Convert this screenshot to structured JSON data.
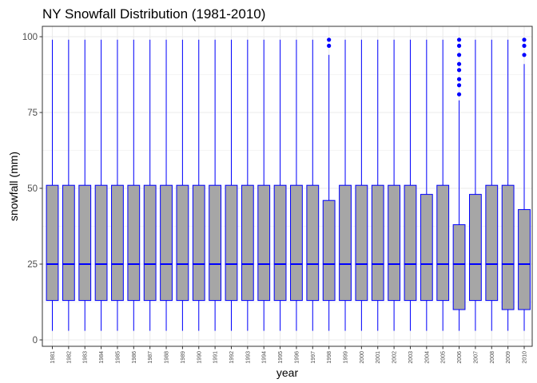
{
  "chart_data": {
    "type": "boxplot",
    "title": "NY Snowfall Distribution (1981-2010)",
    "xlabel": "year",
    "ylabel": "snowfall (mm)",
    "ylim": [
      0,
      100
    ],
    "yticks": [
      0,
      25,
      50,
      75,
      100
    ],
    "grid": true,
    "colors": {
      "box_fill": "#a6a6a6",
      "box_line": "#0000ff",
      "outlier": "#0000ff",
      "grid": "#ebebeb",
      "panel_border": "#333333"
    },
    "categories": [
      "1981",
      "1982",
      "1983",
      "1984",
      "1985",
      "1986",
      "1987",
      "1988",
      "1989",
      "1990",
      "1991",
      "1992",
      "1993",
      "1994",
      "1995",
      "1996",
      "1997",
      "1998",
      "1999",
      "2000",
      "2001",
      "2002",
      "2003",
      "2004",
      "2005",
      "2006",
      "2007",
      "2008",
      "2009",
      "2010"
    ],
    "boxes": [
      {
        "year": "1981",
        "whisker_low": 3,
        "q1": 13,
        "median": 25,
        "q3": 51,
        "whisker_high": 99,
        "outliers": []
      },
      {
        "year": "1982",
        "whisker_low": 3,
        "q1": 13,
        "median": 25,
        "q3": 51,
        "whisker_high": 99,
        "outliers": []
      },
      {
        "year": "1983",
        "whisker_low": 3,
        "q1": 13,
        "median": 25,
        "q3": 51,
        "whisker_high": 99,
        "outliers": []
      },
      {
        "year": "1984",
        "whisker_low": 3,
        "q1": 13,
        "median": 25,
        "q3": 51,
        "whisker_high": 99,
        "outliers": []
      },
      {
        "year": "1985",
        "whisker_low": 3,
        "q1": 13,
        "median": 25,
        "q3": 51,
        "whisker_high": 99,
        "outliers": []
      },
      {
        "year": "1986",
        "whisker_low": 3,
        "q1": 13,
        "median": 25,
        "q3": 51,
        "whisker_high": 99,
        "outliers": []
      },
      {
        "year": "1987",
        "whisker_low": 3,
        "q1": 13,
        "median": 25,
        "q3": 51,
        "whisker_high": 99,
        "outliers": []
      },
      {
        "year": "1988",
        "whisker_low": 3,
        "q1": 13,
        "median": 25,
        "q3": 51,
        "whisker_high": 99,
        "outliers": []
      },
      {
        "year": "1989",
        "whisker_low": 3,
        "q1": 13,
        "median": 25,
        "q3": 51,
        "whisker_high": 99,
        "outliers": []
      },
      {
        "year": "1990",
        "whisker_low": 3,
        "q1": 13,
        "median": 25,
        "q3": 51,
        "whisker_high": 99,
        "outliers": []
      },
      {
        "year": "1991",
        "whisker_low": 3,
        "q1": 13,
        "median": 25,
        "q3": 51,
        "whisker_high": 99,
        "outliers": []
      },
      {
        "year": "1992",
        "whisker_low": 3,
        "q1": 13,
        "median": 25,
        "q3": 51,
        "whisker_high": 99,
        "outliers": []
      },
      {
        "year": "1993",
        "whisker_low": 3,
        "q1": 13,
        "median": 25,
        "q3": 51,
        "whisker_high": 99,
        "outliers": []
      },
      {
        "year": "1994",
        "whisker_low": 3,
        "q1": 13,
        "median": 25,
        "q3": 51,
        "whisker_high": 99,
        "outliers": []
      },
      {
        "year": "1995",
        "whisker_low": 3,
        "q1": 13,
        "median": 25,
        "q3": 51,
        "whisker_high": 99,
        "outliers": []
      },
      {
        "year": "1996",
        "whisker_low": 3,
        "q1": 13,
        "median": 25,
        "q3": 51,
        "whisker_high": 99,
        "outliers": []
      },
      {
        "year": "1997",
        "whisker_low": 3,
        "q1": 13,
        "median": 25,
        "q3": 51,
        "whisker_high": 99,
        "outliers": []
      },
      {
        "year": "1998",
        "whisker_low": 3,
        "q1": 13,
        "median": 25,
        "q3": 46,
        "whisker_high": 94,
        "outliers": [
          97,
          99
        ]
      },
      {
        "year": "1999",
        "whisker_low": 3,
        "q1": 13,
        "median": 25,
        "q3": 51,
        "whisker_high": 99,
        "outliers": []
      },
      {
        "year": "2000",
        "whisker_low": 3,
        "q1": 13,
        "median": 25,
        "q3": 51,
        "whisker_high": 99,
        "outliers": []
      },
      {
        "year": "2001",
        "whisker_low": 3,
        "q1": 13,
        "median": 25,
        "q3": 51,
        "whisker_high": 99,
        "outliers": []
      },
      {
        "year": "2002",
        "whisker_low": 3,
        "q1": 13,
        "median": 25,
        "q3": 51,
        "whisker_high": 99,
        "outliers": []
      },
      {
        "year": "2003",
        "whisker_low": 3,
        "q1": 13,
        "median": 25,
        "q3": 51,
        "whisker_high": 99,
        "outliers": []
      },
      {
        "year": "2004",
        "whisker_low": 3,
        "q1": 13,
        "median": 25,
        "q3": 48,
        "whisker_high": 99,
        "outliers": []
      },
      {
        "year": "2005",
        "whisker_low": 3,
        "q1": 13,
        "median": 25,
        "q3": 51,
        "whisker_high": 99,
        "outliers": []
      },
      {
        "year": "2006",
        "whisker_low": 3,
        "q1": 10,
        "median": 25,
        "q3": 38,
        "whisker_high": 79,
        "outliers": [
          81,
          84,
          86,
          89,
          91,
          94,
          97,
          99
        ]
      },
      {
        "year": "2007",
        "whisker_low": 3,
        "q1": 13,
        "median": 25,
        "q3": 48,
        "whisker_high": 99,
        "outliers": []
      },
      {
        "year": "2008",
        "whisker_low": 3,
        "q1": 13,
        "median": 25,
        "q3": 51,
        "whisker_high": 99,
        "outliers": []
      },
      {
        "year": "2009",
        "whisker_low": 3,
        "q1": 10,
        "median": 25,
        "q3": 51,
        "whisker_high": 99,
        "outliers": []
      },
      {
        "year": "2010",
        "whisker_low": 3,
        "q1": 10,
        "median": 25,
        "q3": 43,
        "whisker_high": 91,
        "outliers": [
          94,
          97,
          99
        ]
      }
    ]
  }
}
